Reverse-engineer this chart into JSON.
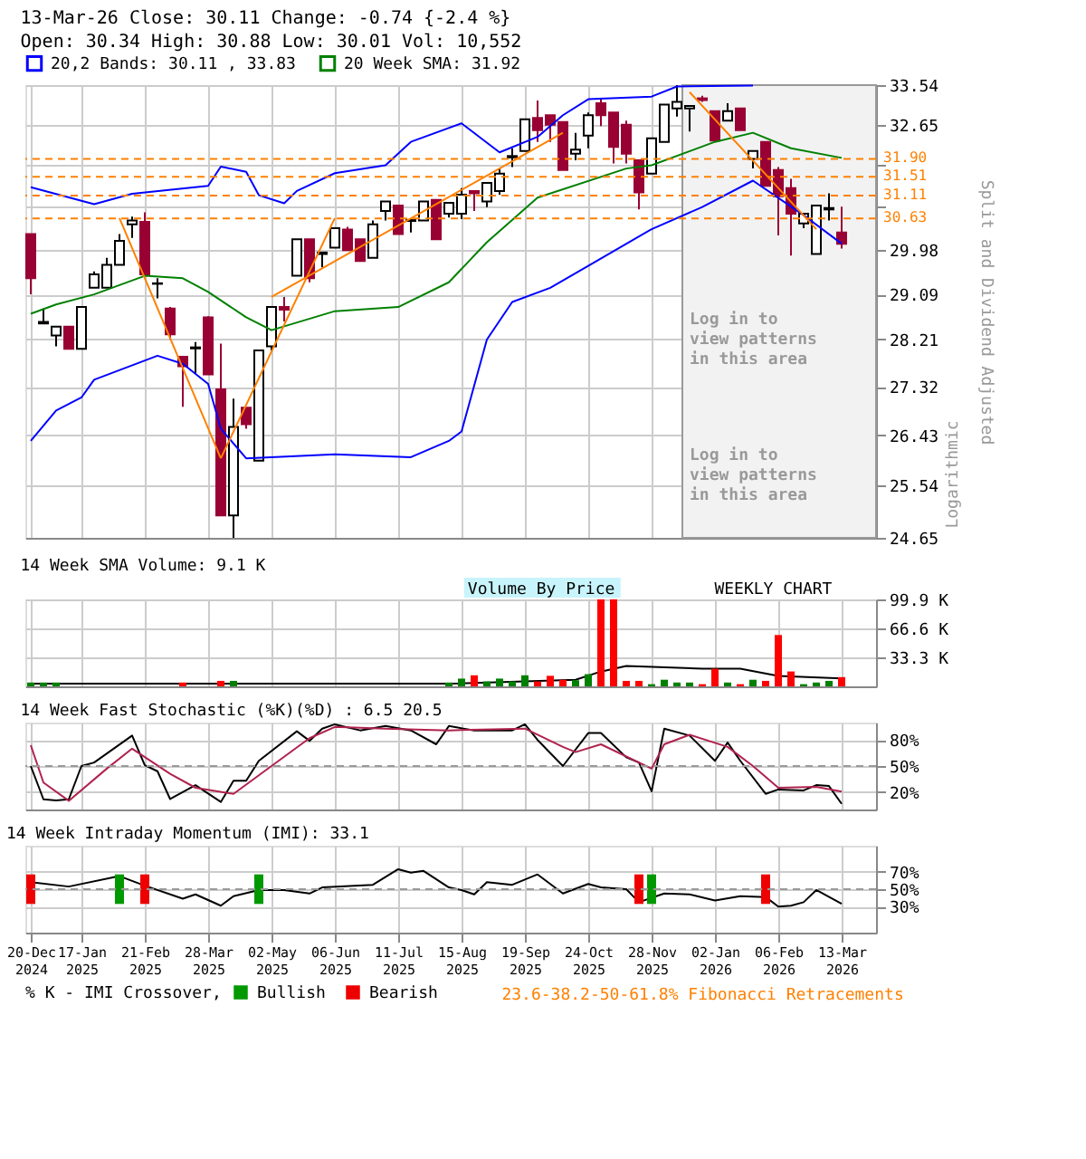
{
  "chart_data": [
    {
      "type": "candlestick",
      "title": "13-Mar-26   Close: 30.11   Change: -0.74 {-2.4 %}",
      "subtitle": "Open: 30.34   High: 30.88   Low: 30.01   Vol: 10,552",
      "ylabel": "Split and Dividend Adjusted",
      "log": true,
      "grid": true,
      "legend": "top",
      "tick_labels": "y",
      "x": [
        "2024-12-20",
        "2024-12-27",
        "2025-01-03",
        "2025-01-10",
        "2025-01-17",
        "2025-01-24",
        "2025-01-31",
        "2025-02-07",
        "2025-02-14",
        "2025-02-21",
        "2025-02-28",
        "2025-03-07",
        "2025-03-14",
        "2025-03-21",
        "2025-03-28",
        "2025-04-04",
        "2025-04-11",
        "2025-04-18",
        "2025-04-25",
        "2025-05-02",
        "2025-05-09",
        "2025-05-16",
        "2025-05-23",
        "2025-05-30",
        "2025-06-06",
        "2025-06-13",
        "2025-06-20",
        "2025-06-27",
        "2025-07-04",
        "2025-07-11",
        "2025-07-18",
        "2025-07-25",
        "2025-08-01",
        "2025-08-08",
        "2025-08-15",
        "2025-08-22",
        "2025-08-29",
        "2025-09-05",
        "2025-09-12",
        "2025-09-19",
        "2025-09-26",
        "2025-10-03",
        "2025-10-10",
        "2025-10-17",
        "2025-10-24",
        "2025-10-31",
        "2025-11-07",
        "2025-11-14",
        "2025-11-21",
        "2025-11-28",
        "2025-12-05",
        "2025-12-12",
        "2025-12-19",
        "2025-12-26",
        "2026-01-02",
        "2026-01-09",
        "2026-01-16",
        "2026-01-23",
        "2026-01-30",
        "2026-02-06",
        "2026-02-13",
        "2026-02-20",
        "2026-02-27",
        "2026-03-06",
        "2026-03-13"
      ],
      "ohlc": [
        [
          30.31,
          30.31,
          29.09,
          29.41
        ],
        [
          28.52,
          28.81,
          28.51,
          28.55
        ],
        [
          28.29,
          28.46,
          28.08,
          28.46
        ],
        [
          28.46,
          28.46,
          28.03,
          28.03
        ],
        [
          28.03,
          28.84,
          28.03,
          28.84
        ],
        [
          29.22,
          29.55,
          29.22,
          29.49
        ],
        [
          29.22,
          29.82,
          29.22,
          29.68
        ],
        [
          29.68,
          30.31,
          29.68,
          30.17
        ],
        [
          30.51,
          30.67,
          30.23,
          30.59
        ],
        [
          30.56,
          30.76,
          29.49,
          29.49
        ],
        [
          29.3,
          29.41,
          29.01,
          29.31
        ],
        [
          28.81,
          28.84,
          28.21,
          28.31
        ],
        [
          27.88,
          27.88,
          26.95,
          27.7
        ],
        [
          28.04,
          28.16,
          27.57,
          28.06
        ],
        [
          28.64,
          28.66,
          27.55,
          27.55
        ],
        [
          27.27,
          28.13,
          25.03,
          25.03
        ],
        [
          25.03,
          27.1,
          24.65,
          26.58
        ],
        [
          26.93,
          26.93,
          26.55,
          26.63
        ],
        [
          25.98,
          28.0,
          25.98,
          28.0
        ],
        [
          28.08,
          28.84,
          28.0,
          28.84
        ],
        [
          28.84,
          29.04,
          28.56,
          28.79
        ],
        [
          29.46,
          30.2,
          29.46,
          30.2
        ],
        [
          30.2,
          30.2,
          29.33,
          29.41
        ],
        [
          29.9,
          29.93,
          29.63,
          29.93
        ],
        [
          30.03,
          30.43,
          30.03,
          30.43
        ],
        [
          30.4,
          30.46,
          29.98,
          29.98
        ],
        [
          30.2,
          30.2,
          29.76,
          29.76
        ],
        [
          29.82,
          30.59,
          29.82,
          30.51
        ],
        [
          30.79,
          30.99,
          30.59,
          30.99
        ],
        [
          30.9,
          30.9,
          30.31,
          30.31
        ],
        [
          30.58,
          30.62,
          30.34,
          30.6
        ],
        [
          30.59,
          30.99,
          30.59,
          30.99
        ],
        [
          31.02,
          31.02,
          30.2,
          30.2
        ],
        [
          30.73,
          30.96,
          30.65,
          30.96
        ],
        [
          30.73,
          31.27,
          30.62,
          31.13
        ],
        [
          31.21,
          31.21,
          30.79,
          31.16
        ],
        [
          30.99,
          31.38,
          30.87,
          31.38
        ],
        [
          31.21,
          31.69,
          31.13,
          31.58
        ],
        [
          31.93,
          32.13,
          31.72,
          31.96
        ],
        [
          32.07,
          32.77,
          32.07,
          32.77
        ],
        [
          32.8,
          33.19,
          32.27,
          32.53
        ],
        [
          32.86,
          32.86,
          32.27,
          32.65
        ],
        [
          32.71,
          32.71,
          31.66,
          31.66
        ],
        [
          32.01,
          32.47,
          31.87,
          32.1
        ],
        [
          32.41,
          32.92,
          32.13,
          32.86
        ],
        [
          33.13,
          33.22,
          32.62,
          32.86
        ],
        [
          32.92,
          32.92,
          31.8,
          32.16
        ],
        [
          32.65,
          32.74,
          31.8,
          32.01
        ],
        [
          31.87,
          31.87,
          30.82,
          31.18
        ],
        [
          31.58,
          32.35,
          31.58,
          32.35
        ],
        [
          32.27,
          33.1,
          32.27,
          33.1
        ],
        [
          33.01,
          33.54,
          32.83,
          33.16
        ],
        [
          33.01,
          33.07,
          32.5,
          33.07
        ],
        [
          33.24,
          33.3,
          33.16,
          33.2
        ],
        [
          32.95,
          32.95,
          32.3,
          32.3
        ],
        [
          32.74,
          33.13,
          32.74,
          32.95
        ],
        [
          33.01,
          33.01,
          32.53,
          32.53
        ],
        [
          31.9,
          32.07,
          31.69,
          32.07
        ],
        [
          32.27,
          32.27,
          31.32,
          31.32
        ],
        [
          31.66,
          31.72,
          30.28,
          31.1
        ],
        [
          31.27,
          31.47,
          29.87,
          30.73
        ],
        [
          30.53,
          30.73,
          30.43,
          30.73
        ],
        [
          29.9,
          30.9,
          29.9,
          30.9
        ],
        [
          30.82,
          31.16,
          30.59,
          30.85
        ],
        [
          30.34,
          30.88,
          30.01,
          30.11
        ]
      ],
      "colors": [
        "#990033",
        "#ffffff",
        "#ffffff",
        "#990033",
        "#ffffff",
        "#ffffff",
        "#ffffff",
        "#ffffff",
        "#ffffff",
        "#990033",
        "#ffffff",
        "#990033",
        "#990033",
        "#ffffff",
        "#990033",
        "#990033",
        "#ffffff",
        "#990033",
        "#ffffff",
        "#ffffff",
        "#990033",
        "#ffffff",
        "#990033",
        "#ffffff",
        "#ffffff",
        "#990033",
        "#990033",
        "#ffffff",
        "#ffffff",
        "#990033",
        "#ffffff",
        "#ffffff",
        "#990033",
        "#ffffff",
        "#ffffff",
        "#990033",
        "#ffffff",
        "#ffffff",
        "#ffffff",
        "#ffffff",
        "#990033",
        "#990033",
        "#990033",
        "#ffffff",
        "#ffffff",
        "#990033",
        "#990033",
        "#990033",
        "#990033",
        "#ffffff",
        "#ffffff",
        "#ffffff",
        "#ffffff",
        "#990033",
        "#990033",
        "#ffffff",
        "#990033",
        "#ffffff",
        "#990033",
        "#990033",
        "#990033",
        "#ffffff",
        "#ffffff",
        "#ffffff",
        "#990033"
      ],
      "series": [
        {
          "type": "line",
          "name": "20,2 Bands: 30.11 , 33.83",
          "color": "#0000ff",
          "x": [
            "2024-12-20",
            "2025-01-24",
            "2025-02-14",
            "2025-03-28",
            "2025-04-04",
            "2025-04-18",
            "2025-04-25",
            "2025-05-09",
            "2025-05-16",
            "2025-06-06",
            "2025-07-04",
            "2025-07-18",
            "2025-08-15",
            "2025-09-05",
            "2025-09-26",
            "2025-10-10",
            "2025-10-24",
            "2025-11-28",
            "2025-12-12",
            "2026-01-23"
          ],
          "values": [
            31.29,
            30.93,
            31.15,
            31.32,
            31.73,
            31.62,
            31.12,
            30.95,
            31.21,
            31.59,
            31.76,
            32.27,
            32.68,
            32.04,
            32.38,
            32.86,
            33.22,
            33.28,
            33.51,
            33.53
          ]
        },
        {
          "type": "line",
          "color": "#0000ff",
          "x": [
            "2024-12-20",
            "2025-01-03",
            "2025-01-17",
            "2025-01-24",
            "2025-02-28",
            "2025-03-14",
            "2025-03-28",
            "2025-04-04",
            "2025-04-18",
            "2025-06-06",
            "2025-07-18",
            "2025-08-08",
            "2025-08-15",
            "2025-08-29",
            "2025-09-12",
            "2025-10-03",
            "2025-10-24",
            "2025-11-28",
            "2025-12-26",
            "2026-01-23",
            "2026-02-20",
            "2026-03-13"
          ],
          "values": [
            26.33,
            26.88,
            27.12,
            27.45,
            27.9,
            27.75,
            27.37,
            26.55,
            26.02,
            26.09,
            26.04,
            26.33,
            26.5,
            28.21,
            28.94,
            29.22,
            29.66,
            30.41,
            30.87,
            31.43,
            30.7,
            30.11
          ]
        },
        {
          "type": "line",
          "name": "20 Week SMA: 31.92",
          "color": "#008000",
          "x": [
            "2024-12-20",
            "2025-01-03",
            "2025-01-24",
            "2025-02-21",
            "2025-03-14",
            "2025-03-28",
            "2025-04-18",
            "2025-05-02",
            "2025-06-06",
            "2025-07-11",
            "2025-08-08",
            "2025-08-29",
            "2025-09-26",
            "2025-11-14",
            "2025-11-28",
            "2026-01-02",
            "2026-01-23",
            "2026-02-13",
            "2026-03-13"
          ],
          "values": [
            28.71,
            28.89,
            29.09,
            29.46,
            29.41,
            29.14,
            28.64,
            28.39,
            28.76,
            28.84,
            29.33,
            30.14,
            31.07,
            31.69,
            31.76,
            32.27,
            32.47,
            32.13,
            31.92
          ]
        },
        {
          "type": "line",
          "color": "#ff8000",
          "x": [
            "2025-02-07",
            "2025-04-04"
          ],
          "values": [
            30.64,
            26.02
          ]
        },
        {
          "type": "line",
          "color": "#ff8000",
          "x": [
            "2025-04-04",
            "2025-06-06"
          ],
          "values": [
            26.02,
            30.64
          ]
        },
        {
          "type": "line",
          "color": "#ff8000",
          "x": [
            "2025-05-02",
            "2025-10-10"
          ],
          "values": [
            29.04,
            32.47
          ]
        },
        {
          "type": "line",
          "color": "#ff8000",
          "x": [
            "2025-12-19",
            "2026-02-27"
          ],
          "values": [
            33.38,
            30.41
          ]
        }
      ],
      "xlim": [
        "2024-12-17",
        "2026-04-01"
      ],
      "ylim": [
        24.65,
        33.54
      ],
      "yticks": [
        33.54,
        32.65,
        {
          "value": 31.76,
          "label": null
        },
        {
          "value": 30.87,
          "label": null
        },
        29.98,
        29.09,
        28.21,
        27.32,
        26.43,
        25.54,
        24.65
      ],
      "ref_lines": [
        {
          "axis": "y",
          "value": 31.9,
          "label": "31.90",
          "color": "#ff8000",
          "line_style": "dashed"
        },
        {
          "axis": "y",
          "value": 31.51,
          "label": "31.51",
          "color": "#ff8000",
          "line_style": "dashed"
        },
        {
          "axis": "y",
          "value": 31.11,
          "label": "31.11",
          "color": "#ff8000",
          "line_style": "dashed"
        },
        {
          "axis": "y",
          "value": 30.63,
          "label": "30.63",
          "color": "#ff8000",
          "line_style": "dashed"
        }
      ],
      "bands": [
        {
          "axis": "x",
          "from": "2025-12-15",
          "to": "2026-04-01",
          "label": "Log in to view patterns in this area",
          "color": "#f2f2f2"
        }
      ],
      "annotations": [
        "Logarithmic",
        "Log in to view patterns in this area"
      ]
    },
    {
      "type": "bar",
      "title": "14 Week SMA Volume: 9.1 K",
      "grid": true,
      "tick_labels": "y",
      "x": [
        "2024-12-20",
        "2024-12-27",
        "2025-01-03",
        "2025-03-14",
        "2025-04-04",
        "2025-04-11",
        "2025-08-08",
        "2025-08-15",
        "2025-08-22",
        "2025-08-29",
        "2025-09-05",
        "2025-09-12",
        "2025-09-19",
        "2025-09-26",
        "2025-10-03",
        "2025-10-10",
        "2025-10-17",
        "2025-10-24",
        "2025-10-31",
        "2025-11-07",
        "2025-11-14",
        "2025-11-21",
        "2025-11-28",
        "2025-12-05",
        "2025-12-12",
        "2025-12-19",
        "2025-12-26",
        "2026-01-02",
        "2026-01-09",
        "2026-01-16",
        "2026-01-23",
        "2026-01-30",
        "2026-02-06",
        "2026-02-13",
        "2026-02-20",
        "2026-02-27",
        "2026-03-06",
        "2026-03-13"
      ],
      "values": [
        4.4,
        4.4,
        4.4,
        4.4,
        6.3,
        6.3,
        4.4,
        8.9,
        12.7,
        5.7,
        8.9,
        5.7,
        12.7,
        5.7,
        12.1,
        7.6,
        7.0,
        14.0,
        99.9,
        99.9,
        6.3,
        6.3,
        2.5,
        7.6,
        4.4,
        4.4,
        2.5,
        20.3,
        4.4,
        2.5,
        7.6,
        6.3,
        59.0,
        17.1,
        2.5,
        4.4,
        6.3,
        10.6
      ],
      "colors": [
        "#008000",
        "#008000",
        "#008000",
        "#ff0000",
        "#ff0000",
        "#008000",
        "#008000",
        "#008000",
        "#ff0000",
        "#008000",
        "#008000",
        "#008000",
        "#008000",
        "#ff0000",
        "#ff0000",
        "#ff0000",
        "#008000",
        "#008000",
        "#ff0000",
        "#ff0000",
        "#ff0000",
        "#ff0000",
        "#008000",
        "#008000",
        "#008000",
        "#008000",
        "#ff0000",
        "#ff0000",
        "#008000",
        "#ff0000",
        "#008000",
        "#ff0000",
        "#ff0000",
        "#ff0000",
        "#008000",
        "#008000",
        "#008000",
        "#ff0000"
      ],
      "series": [
        {
          "type": "line",
          "color": "#000000",
          "x": [
            "2024-12-20",
            "2025-08-08",
            "2025-10-17",
            "2025-10-31",
            "2025-11-14",
            "2025-12-26",
            "2026-01-16",
            "2026-02-06",
            "2026-03-13"
          ],
          "values": [
            3.0,
            3.0,
            7.6,
            17.0,
            23.5,
            20.3,
            20.3,
            12.0,
            9.1
          ]
        }
      ],
      "xlim": [
        "2024-12-17",
        "2026-04-01"
      ],
      "ylim": [
        0,
        99.9
      ],
      "yticks": [
        {
          "value": 33.3,
          "label": "33.3 K"
        },
        {
          "value": 66.6,
          "label": "66.6 K"
        },
        {
          "value": 99.9,
          "label": "99.9 K"
        }
      ],
      "annotations": [
        "Volume By Price",
        "WEEKLY CHART"
      ]
    },
    {
      "type": "line",
      "title": "14 Week Fast Stochastic (%K)(%D) : 6.5  20.5",
      "grid": true,
      "tick_labels": "y",
      "series": [
        {
          "color": "#000000",
          "x": [
            "2024-12-20",
            "2024-12-27",
            "2025-01-03",
            "2025-01-10",
            "2025-01-17",
            "2025-01-24",
            "2025-02-14",
            "2025-02-21",
            "2025-02-28",
            "2025-03-07",
            "2025-03-21",
            "2025-04-04",
            "2025-04-11",
            "2025-04-18",
            "2025-04-25",
            "2025-05-16",
            "2025-05-23",
            "2025-05-30",
            "2025-06-06",
            "2025-06-20",
            "2025-07-04",
            "2025-07-18",
            "2025-08-01",
            "2025-08-08",
            "2025-08-22",
            "2025-09-12",
            "2025-09-19",
            "2025-09-26",
            "2025-10-10",
            "2025-10-24",
            "2025-10-31",
            "2025-11-14",
            "2025-11-21",
            "2025-11-28",
            "2025-12-05",
            "2025-12-19",
            "2026-01-02",
            "2026-01-09",
            "2026-01-16",
            "2026-01-30",
            "2026-02-06",
            "2026-02-20",
            "2026-02-27",
            "2026-03-06",
            "2026-03-13"
          ],
          "values": [
            50,
            11.7,
            10.4,
            11.7,
            50,
            54,
            85,
            51,
            44,
            12,
            28,
            8.7,
            33,
            33,
            56,
            90,
            79,
            93,
            98,
            91,
            96,
            91,
            75,
            96,
            91,
            91,
            98,
            80,
            50,
            88,
            88,
            60,
            54,
            21,
            93,
            85,
            56,
            77,
            56,
            18,
            23,
            22,
            28,
            27,
            6.5
          ]
        },
        {
          "color": "#b0224e",
          "x": [
            "2024-12-20",
            "2024-12-27",
            "2025-01-10",
            "2025-01-31",
            "2025-02-14",
            "2025-03-07",
            "2025-03-21",
            "2025-04-11",
            "2025-05-02",
            "2025-05-23",
            "2025-06-06",
            "2025-07-04",
            "2025-08-08",
            "2025-09-19",
            "2025-10-10",
            "2025-10-17",
            "2025-10-31",
            "2025-11-28",
            "2025-12-05",
            "2025-12-19",
            "2026-01-09",
            "2026-01-23",
            "2026-02-06",
            "2026-02-27",
            "2026-03-13"
          ],
          "values": [
            74,
            31,
            10,
            47,
            70,
            41,
            25,
            18,
            50,
            82,
            95,
            93,
            91,
            93,
            72,
            66,
            75,
            47,
            75,
            86,
            72,
            50,
            25,
            26,
            20.5
          ]
        }
      ],
      "xlim": [
        "2024-12-17",
        "2026-04-01"
      ],
      "ylim": [
        0,
        100
      ],
      "yticks": [
        {
          "value": 20,
          "label": "20%"
        },
        {
          "value": 50,
          "label": "50%"
        },
        {
          "value": 80,
          "label": "80%"
        }
      ],
      "ref_lines": [
        {
          "axis": "y",
          "value": 50,
          "color": "#999999",
          "line_style": "dashed"
        }
      ]
    },
    {
      "type": "line",
      "title": "14 Week Intraday Momentum (IMI): 33.1",
      "grid": true,
      "legend": "bottom",
      "legend_title": "% K - IMI Crossover,",
      "series": [
        {
          "color": "#000000",
          "x": [
            "2024-12-20",
            "2025-01-10",
            "2025-02-07",
            "2025-02-21",
            "2025-03-14",
            "2025-03-21",
            "2025-04-04",
            "2025-04-11",
            "2025-04-25",
            "2025-05-09",
            "2025-05-23",
            "2025-05-30",
            "2025-06-27",
            "2025-07-11",
            "2025-07-18",
            "2025-07-25",
            "2025-08-08",
            "2025-08-15",
            "2025-08-22",
            "2025-08-29",
            "2025-09-12",
            "2025-09-26",
            "2025-10-10",
            "2025-10-24",
            "2025-10-31",
            "2025-11-14",
            "2025-11-21",
            "2025-12-05",
            "2025-12-19",
            "2026-01-02",
            "2026-01-16",
            "2026-01-30",
            "2026-02-06",
            "2026-02-13",
            "2026-02-20",
            "2026-02-27",
            "2026-03-13"
          ],
          "values": [
            58,
            53,
            65,
            54,
            39,
            44,
            31,
            42,
            49,
            49,
            45,
            52,
            55,
            73,
            69,
            71,
            52,
            49,
            44,
            58,
            55,
            67,
            45,
            56,
            52,
            50,
            35,
            45,
            44,
            37,
            42,
            41,
            30,
            31,
            35,
            49,
            33.1
          ]
        },
        {
          "type": "bar",
          "name": "Bullish",
          "color": "#009900",
          "x": [
            "2025-02-07",
            "2025-04-25",
            "2025-11-28"
          ],
          "base": [
            33,
            33,
            33
          ],
          "values": [
            34,
            34,
            34
          ]
        },
        {
          "type": "bar",
          "name": "Bearish",
          "color": "#ee0000",
          "x": [
            "2024-12-20",
            "2025-02-21",
            "2025-11-21",
            "2026-01-30"
          ],
          "base": [
            33,
            33,
            33,
            33
          ],
          "values": [
            34,
            34,
            34,
            34
          ]
        }
      ],
      "xlim": [
        "2024-12-17",
        "2026-04-01"
      ],
      "xticks": [
        {
          "value": "2024-12-20",
          "label": "20-Dec 2024"
        },
        {
          "value": "2025-01-17",
          "label": "17-Jan 2025"
        },
        {
          "value": "2025-02-21",
          "label": "21-Feb 2025"
        },
        {
          "value": "2025-03-28",
          "label": "28-Mar 2025"
        },
        {
          "value": "2025-05-02",
          "label": "02-May 2025"
        },
        {
          "value": "2025-06-06",
          "label": "06-Jun 2025"
        },
        {
          "value": "2025-07-11",
          "label": "11-Jul 2025"
        },
        {
          "value": "2025-08-15",
          "label": "15-Aug 2025"
        },
        {
          "value": "2025-09-19",
          "label": "19-Sep 2025"
        },
        {
          "value": "2025-10-24",
          "label": "24-Oct 2025"
        },
        {
          "value": "2025-11-28",
          "label": "28-Nov 2025"
        },
        {
          "value": "2026-01-02",
          "label": "02-Jan 2026"
        },
        {
          "value": "2026-02-06",
          "label": "06-Feb 2026"
        },
        {
          "value": "2026-03-13",
          "label": "13-Mar 2026"
        }
      ],
      "ylim": [
        0,
        100
      ],
      "yticks": [
        {
          "value": 30,
          "label": "30%"
        },
        {
          "value": 50,
          "label": "50%"
        },
        {
          "value": 70,
          "label": "70%"
        }
      ],
      "ref_lines": [
        {
          "axis": "y",
          "value": 50,
          "color": "#999999",
          "line_style": "dashed"
        }
      ],
      "annotations": [
        "23.6-38.2-50-61.8% Fibonacci Retracements"
      ]
    }
  ]
}
